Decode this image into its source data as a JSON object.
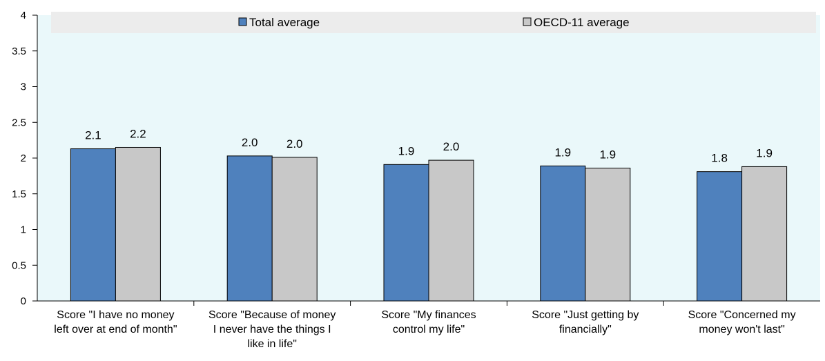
{
  "chart_data": {
    "type": "bar",
    "categories": [
      [
        "Score \"I have no money",
        "left over at end of month\""
      ],
      [
        "Score \"Because of money",
        "I never have the things I",
        "like in life\""
      ],
      [
        "Score \"My finances",
        "control my life\""
      ],
      [
        "Score \"Just getting by",
        "financially\""
      ],
      [
        "Score \"Concerned my",
        "money won't last\""
      ]
    ],
    "series": [
      {
        "name": "Total average",
        "color": "#4f81bd",
        "values": [
          2.13,
          2.03,
          1.91,
          1.89,
          1.81
        ],
        "labels": [
          "2.1",
          "2.0",
          "1.9",
          "1.9",
          "1.8"
        ]
      },
      {
        "name": "OECD-11 average",
        "color": "#c8c8c8",
        "values": [
          2.15,
          2.01,
          1.97,
          1.86,
          1.88
        ],
        "labels": [
          "2.2",
          "2.0",
          "2.0",
          "1.9",
          "1.9"
        ]
      }
    ],
    "yticks": [
      "0",
      "0.5",
      "1",
      "1.5",
      "2",
      "2.5",
      "3",
      "3.5",
      "4"
    ],
    "ylim": [
      0,
      4
    ],
    "legend_position": "top",
    "plot_background": "#eaf8fa",
    "legend_background": "#ececec",
    "grid": false
  }
}
